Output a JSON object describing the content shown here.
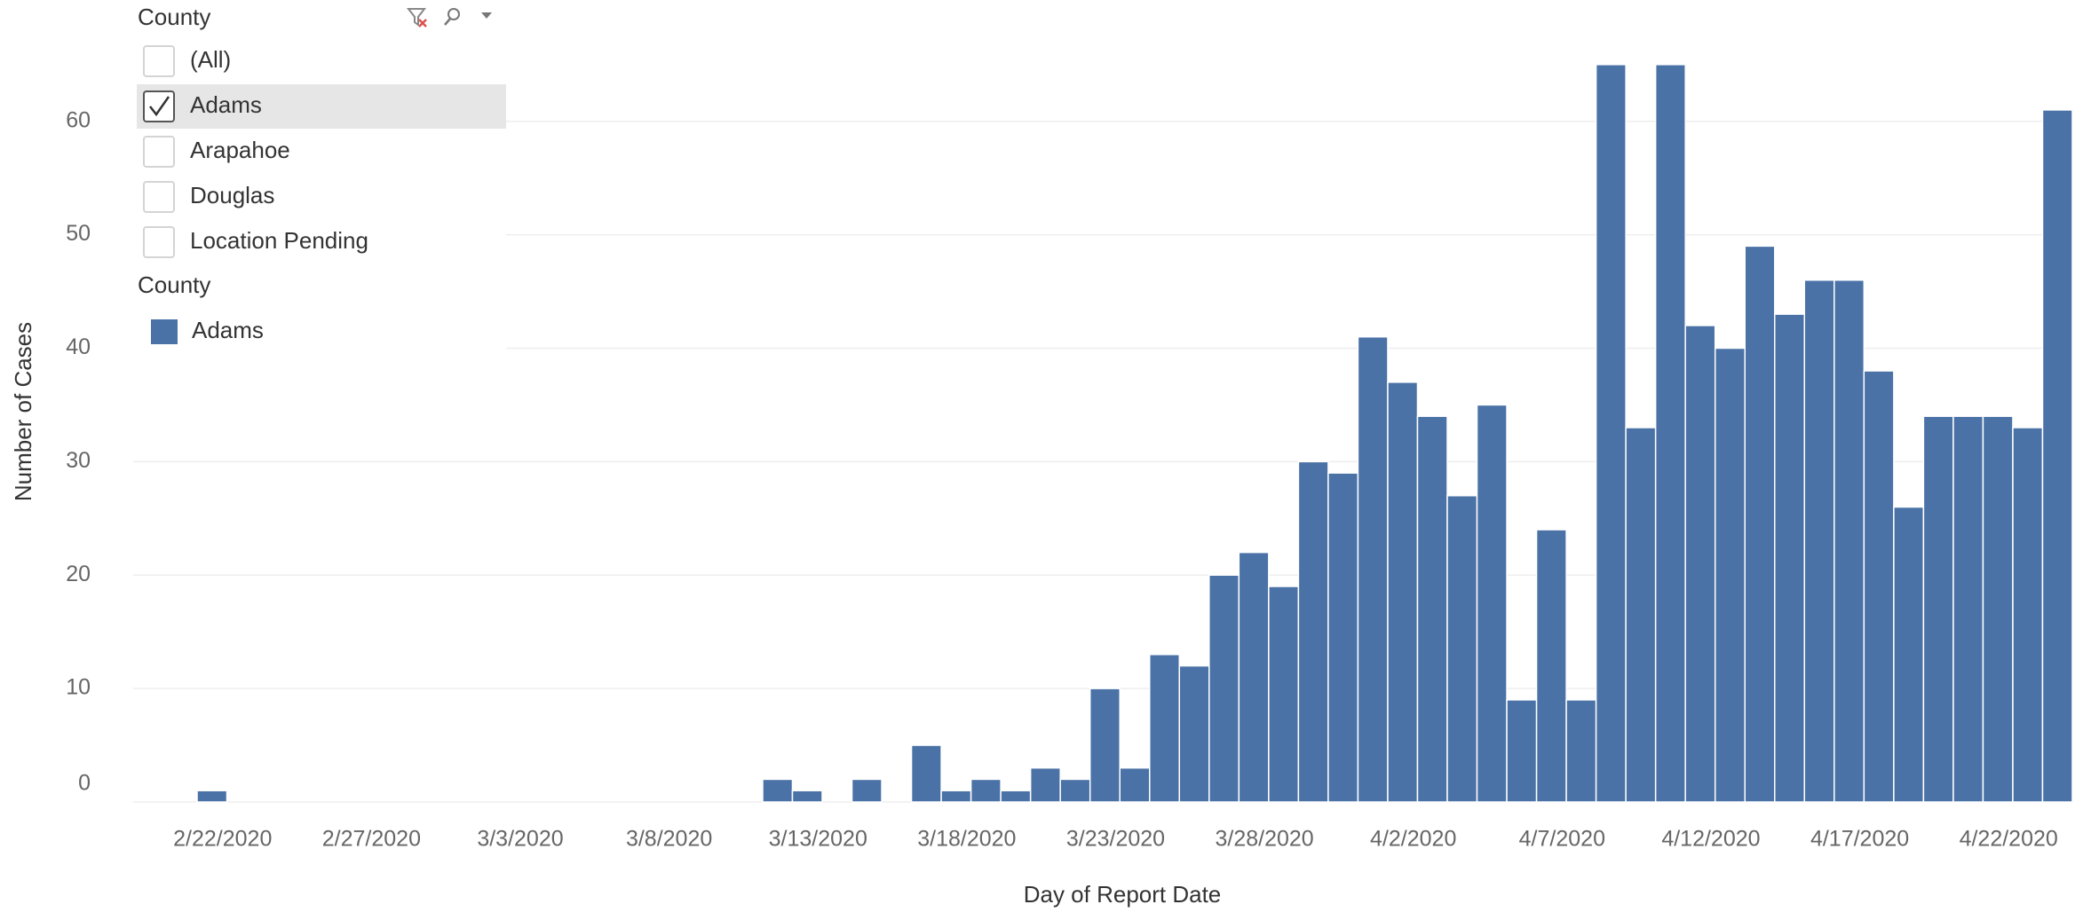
{
  "chart_data": {
    "type": "bar",
    "x_label": "Day of Report Date",
    "y_label": "Number of Cases",
    "categories": [
      "2/22/2020",
      null,
      null,
      null,
      null,
      "2/27/2020",
      null,
      null,
      null,
      null,
      "3/3/2020",
      null,
      null,
      null,
      null,
      "3/8/2020",
      null,
      null,
      null,
      null,
      "3/13/2020",
      null,
      null,
      null,
      null,
      "3/18/2020",
      null,
      null,
      null,
      null,
      "3/23/2020",
      null,
      null,
      null,
      null,
      "3/28/2020",
      null,
      null,
      null,
      null,
      "4/2/2020",
      null,
      null,
      null,
      null,
      "4/7/2020",
      null,
      null,
      null,
      null,
      "4/12/2020",
      null,
      null,
      null,
      null,
      "4/17/2020",
      null,
      null,
      null,
      null,
      "4/22/2020",
      null,
      null
    ],
    "legend_title": "County",
    "series": [
      {
        "name": "Adams",
        "color": "#4a72a6",
        "values": [
          1,
          null,
          null,
          null,
          null,
          null,
          null,
          null,
          null,
          null,
          null,
          null,
          null,
          null,
          null,
          null,
          null,
          null,
          null,
          2,
          1,
          null,
          2,
          null,
          5,
          1,
          2,
          1,
          3,
          2,
          10,
          3,
          13,
          12,
          20,
          22,
          19,
          30,
          29,
          41,
          37,
          34,
          27,
          35,
          9,
          24,
          9,
          65,
          33,
          65,
          42,
          40,
          49,
          43,
          46,
          46,
          38,
          26,
          34,
          34,
          34,
          33,
          61
        ]
      }
    ],
    "ylim": [
      0,
      66
    ],
    "yticks": [
      0,
      10,
      20,
      30,
      40,
      50,
      60
    ],
    "grid": true
  },
  "filter": {
    "title": "County",
    "options": [
      "(All)",
      "Adams",
      "Arapahoe",
      "Douglas",
      "Location Pending"
    ],
    "checked": [
      false,
      true,
      false,
      false,
      false
    ]
  }
}
